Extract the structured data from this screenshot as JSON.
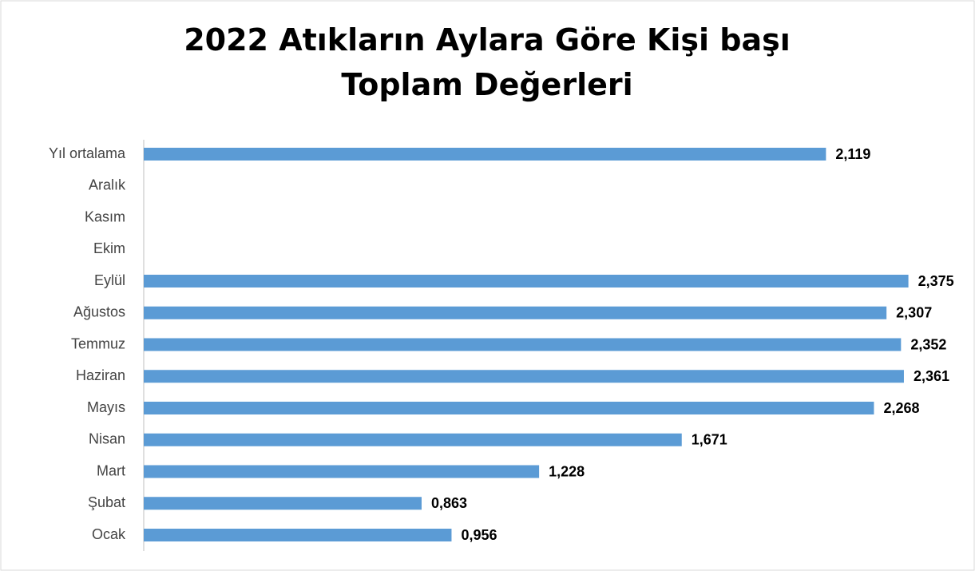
{
  "chart_data": {
    "type": "barh",
    "title": "2022 Atıkların Aylara Göre Kişi başı  Toplam Değerleri",
    "categories": [
      "Ocak",
      "Şubat",
      "Mart",
      "Nisan",
      "Mayıs",
      "Haziran",
      "Temmuz",
      "Ağustos",
      "Eylül",
      "Ekim",
      "Kasım",
      "Aralık",
      "Yıl ortalama"
    ],
    "values": [
      0.956,
      0.863,
      1.228,
      1.671,
      2.268,
      2.361,
      2.352,
      2.307,
      2.375,
      null,
      null,
      null,
      2.119
    ],
    "value_labels": [
      "0,956",
      "0,863",
      "1,228",
      "1,671",
      "2,268",
      "2,361",
      "2,352",
      "2,307",
      "2,375",
      null,
      null,
      null,
      "2,119"
    ],
    "color": "#5b9bd5",
    "xlim": [
      0,
      2.5
    ]
  }
}
